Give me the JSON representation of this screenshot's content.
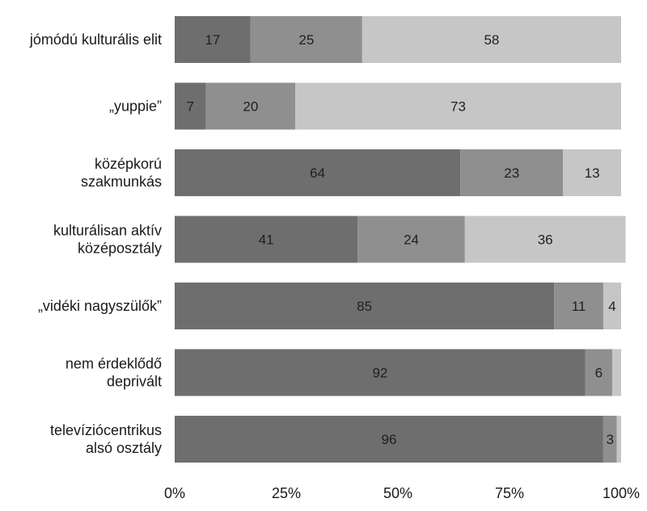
{
  "chart_data": {
    "type": "bar",
    "orientation": "horizontal",
    "stacked": true,
    "categories": [
      [
        "jómódú kulturális elit"
      ],
      [
        "„yuppie”"
      ],
      [
        "középkorú",
        "szakmunkás"
      ],
      [
        "kulturálisan aktív",
        "középosztály"
      ],
      [
        "„vidéki nagyszülők”"
      ],
      [
        "nem érdeklődő",
        "deprivált"
      ],
      [
        "televíziócentrikus",
        "alsó osztály"
      ]
    ],
    "series": [
      {
        "values": [
          17,
          7,
          64,
          41,
          85,
          92,
          96
        ],
        "color": "#6e6e6e"
      },
      {
        "values": [
          25,
          20,
          23,
          24,
          11,
          6,
          3
        ],
        "color": "#8f8f8f"
      },
      {
        "values": [
          58,
          73,
          13,
          36,
          4,
          2,
          1
        ],
        "color": "#c6c6c6"
      }
    ],
    "data_labels": [
      [
        "17",
        "7",
        "64",
        "41",
        "85",
        "92",
        "96"
      ],
      [
        "25",
        "20",
        "23",
        "24",
        "11",
        "6",
        "3"
      ],
      [
        "58",
        "73",
        "13",
        "36",
        "4",
        "",
        ""
      ]
    ],
    "x_ticks": [
      "0%",
      "25%",
      "50%",
      "75%",
      "100%"
    ],
    "xlim": [
      0,
      100
    ],
    "grid": false,
    "legend": "none"
  }
}
